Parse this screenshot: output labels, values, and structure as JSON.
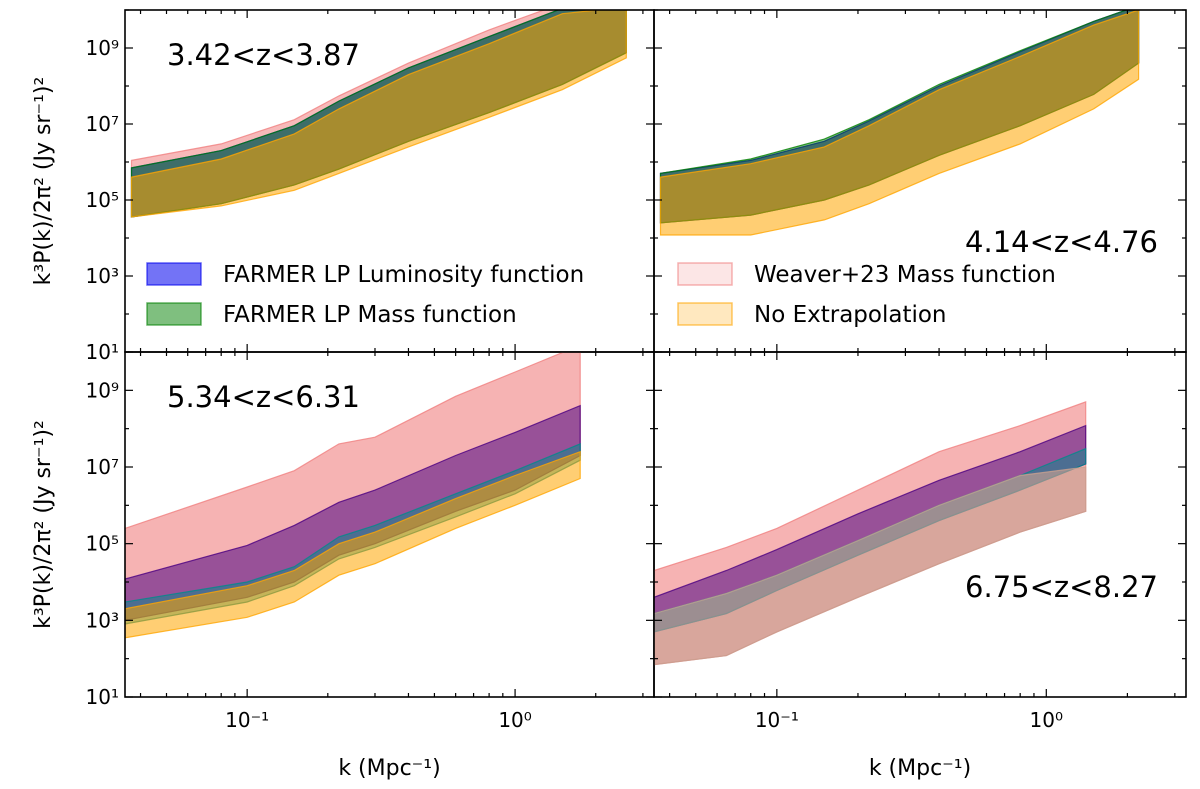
{
  "chart_data": {
    "type": "area",
    "title": "",
    "xlabel": "k (Mpc⁻¹)",
    "ylabel": "k³P(k)/2π² (Jy sr⁻¹)²",
    "xscale": "log",
    "yscale": "log",
    "ylim": [
      10,
      10000000000
    ],
    "x_tick_labels": [
      "10⁻¹",
      "10⁰"
    ],
    "y_tick_labels": [
      "10¹",
      "10³",
      "10⁵",
      "10⁷",
      "10⁹"
    ],
    "legend": [
      {
        "name": "FARMER LP Luminosity function",
        "color": "#0000ee"
      },
      {
        "name": "FARMER LP Mass function",
        "color": "#008000"
      },
      {
        "name": "Weaver+23 Mass function",
        "color": "#f08080"
      },
      {
        "name": "No Extrapolation",
        "color": "#ffa500"
      }
    ],
    "panels": [
      {
        "label": "3.42<z<3.87",
        "xlim": [
          0.035,
          3.3
        ],
        "label_pos": "top-left",
        "series": [
          {
            "name": "Weaver+23 Mass function",
            "color": "#f08080",
            "opacity": 0.55,
            "x": [
              0.037,
              0.08,
              0.15,
              0.22,
              0.4,
              0.8,
              1.5,
              2.6
            ],
            "upper": [
              1100000,
              3000000,
              13000000,
              55000000,
              400000000,
              3000000000,
              15000000000,
              20000000000
            ],
            "lower": [
              36000,
              80000,
              250000,
              650000,
              3500000,
              20000000,
              110000000,
              750000000
            ]
          },
          {
            "name": "FARMER LP Luminosity function",
            "color": "#0000ee",
            "opacity": 0.5,
            "x": [
              0.037,
              0.08,
              0.15,
              0.22,
              0.4,
              0.8,
              1.5,
              2.6
            ],
            "upper": [
              700000,
              2000000,
              9000000,
              40000000,
              300000000,
              2000000000,
              11000000000,
              15000000000
            ],
            "lower": [
              36000,
              80000,
              250000,
              650000,
              3500000,
              20000000,
              110000000,
              750000000
            ]
          },
          {
            "name": "FARMER LP Mass function",
            "color": "#008000",
            "opacity": 0.5,
            "x": [
              0.037,
              0.08,
              0.15,
              0.22,
              0.4,
              0.8,
              1.5,
              2.6
            ],
            "upper": [
              700000,
              2000000,
              9000000,
              40000000,
              300000000,
              2000000000,
              11000000000,
              15000000000
            ],
            "lower": [
              36000,
              80000,
              250000,
              650000,
              3500000,
              20000000,
              110000000,
              750000000
            ]
          },
          {
            "name": "No Extrapolation",
            "color": "#ffa500",
            "opacity": 0.55,
            "x": [
              0.037,
              0.08,
              0.15,
              0.22,
              0.4,
              0.8,
              1.5,
              2.6
            ],
            "upper": [
              400000,
              1200000,
              5500000,
              25000000,
              200000000,
              1300000000,
              8000000000,
              12000000000
            ],
            "lower": [
              36000,
              70000,
              180000,
              500000,
              2500000,
              15000000,
              80000000,
              550000000
            ]
          }
        ]
      },
      {
        "label": "4.14<z<4.76",
        "xlim": [
          0.035,
          3.3
        ],
        "label_pos": "bottom-right",
        "series": [
          {
            "name": "Weaver+23 Mass function",
            "color": "#f08080",
            "opacity": 0.55,
            "x": [
              0.037,
              0.08,
              0.15,
              0.22,
              0.4,
              0.8,
              1.5,
              2.2
            ],
            "upper": [
              500000,
              1100000,
              3500000,
              12000000,
              100000000,
              800000000,
              5000000000,
              13000000000
            ],
            "lower": [
              25000,
              40000,
              100000,
              250000,
              1500000,
              9000000,
              60000000,
              400000000
            ]
          },
          {
            "name": "FARMER LP Luminosity function",
            "color": "#0000ee",
            "opacity": 0.5,
            "x": [
              0.037,
              0.08,
              0.15,
              0.22,
              0.4,
              0.8,
              1.5,
              2.2
            ],
            "upper": [
              500000,
              1100000,
              3500000,
              12000000,
              100000000,
              800000000,
              5000000000,
              13000000000
            ],
            "lower": [
              25000,
              40000,
              100000,
              250000,
              1500000,
              9000000,
              60000000,
              400000000
            ]
          },
          {
            "name": "FARMER LP Mass function",
            "color": "#008000",
            "opacity": 0.5,
            "x": [
              0.037,
              0.08,
              0.15,
              0.22,
              0.4,
              0.8,
              1.5,
              2.2
            ],
            "upper": [
              500000,
              1200000,
              4000000,
              13000000,
              110000000,
              850000000,
              5000000000,
              13000000000
            ],
            "lower": [
              25000,
              40000,
              100000,
              250000,
              1500000,
              9000000,
              60000000,
              400000000
            ]
          },
          {
            "name": "No Extrapolation",
            "color": "#ffa500",
            "opacity": 0.55,
            "x": [
              0.037,
              0.08,
              0.15,
              0.22,
              0.4,
              0.8,
              1.5,
              2.2
            ],
            "upper": [
              400000,
              900000,
              2500000,
              9000000,
              80000000,
              600000000,
              4000000000,
              10000000000
            ],
            "lower": [
              12000,
              12000,
              30000,
              80000,
              500000,
              3000000,
              25000000,
              150000000
            ]
          }
        ]
      },
      {
        "label": "5.34<z<6.31",
        "xlim": [
          0.035,
          3.3
        ],
        "label_pos": "top-left",
        "series": [
          {
            "name": "Weaver+23 Mass function",
            "color": "#f08080",
            "opacity": 0.6,
            "x": [
              0.035,
              0.1,
              0.15,
              0.22,
              0.3,
              0.6,
              1.0,
              1.75
            ],
            "upper": [
              250000,
              3000000,
              8000000,
              40000000,
              60000000,
              700000000,
              3000000000,
              15000000000
            ],
            "lower": [
              1000,
              4000,
              10000,
              50000,
              100000,
              700000,
              2500000,
              20000000
            ]
          },
          {
            "name": "FARMER LP Luminosity function",
            "color": "#4b0082",
            "opacity": 0.55,
            "x": [
              0.035,
              0.1,
              0.15,
              0.22,
              0.3,
              0.6,
              1.0,
              1.75
            ],
            "upper": [
              12000,
              90000,
              300000,
              1200000,
              2500000,
              20000000,
              80000000,
              400000000
            ],
            "lower": [
              1000,
              4000,
              10000,
              50000,
              100000,
              700000,
              2500000,
              20000000
            ]
          },
          {
            "name": "FARMER LP Mass function",
            "color": "#008b8b",
            "opacity": 0.5,
            "x": [
              0.035,
              0.1,
              0.15,
              0.22,
              0.3,
              0.6,
              1.0,
              1.75
            ],
            "upper": [
              3000,
              10000,
              25000,
              150000,
              300000,
              2000000,
              8000000,
              40000000
            ],
            "lower": [
              800,
              3000,
              8000,
              40000,
              80000,
              500000,
              2000000,
              15000000
            ]
          },
          {
            "name": "No Extrapolation",
            "color": "#ffa500",
            "opacity": 0.55,
            "x": [
              0.035,
              0.1,
              0.15,
              0.22,
              0.3,
              0.6,
              1.0,
              1.75
            ],
            "upper": [
              2000,
              8000,
              20000,
              100000,
              200000,
              1500000,
              6000000,
              25000000
            ],
            "lower": [
              350,
              1200,
              3000,
              15000,
              30000,
              250000,
              1000000,
              5000000
            ]
          }
        ]
      },
      {
        "label": "6.75<z<8.27",
        "xlim": [
          0.035,
          3.3
        ],
        "label_pos": "bottom-right",
        "series": [
          {
            "name": "Weaver+23 Mass function",
            "color": "#f08080",
            "opacity": 0.6,
            "x": [
              0.035,
              0.065,
              0.1,
              0.2,
              0.4,
              0.8,
              1.4
            ],
            "upper": [
              20000,
              80000,
              250000,
              2500000,
              25000000,
              120000000,
              500000000
            ],
            "lower": [
              70,
              120,
              500,
              4000,
              30000,
              200000,
              700000
            ]
          },
          {
            "name": "FARMER LP Luminosity function",
            "color": "#4b0082",
            "opacity": 0.55,
            "x": [
              0.035,
              0.065,
              0.1,
              0.2,
              0.4,
              0.8,
              1.4
            ],
            "upper": [
              4000,
              20000,
              70000,
              600000,
              4500000,
              25000000,
              120000000
            ],
            "lower": [
              500,
              1500,
              6000,
              50000,
              400000,
              2500000,
              12000000
            ]
          },
          {
            "name": "FARMER LP Mass function",
            "color": "#008b8b",
            "opacity": 0.5,
            "x": [
              0.035,
              0.065,
              0.1,
              0.2,
              0.4,
              0.8,
              1.4
            ],
            "upper": [
              1500,
              5000,
              15000,
              120000,
              1000000,
              6000000,
              30000000
            ],
            "lower": [
              500,
              1500,
              6000,
              50000,
              400000,
              2500000,
              12000000
            ]
          },
          {
            "name": "No Extrapolation",
            "color": "#c8a090",
            "opacity": 0.65,
            "x": [
              0.035,
              0.065,
              0.1,
              0.2,
              0.4,
              0.8,
              1.4
            ],
            "upper": [
              1500,
              5000,
              15000,
              120000,
              1000000,
              6000000,
              10000000
            ],
            "lower": [
              70,
              120,
              500,
              4000,
              30000,
              200000,
              700000
            ]
          }
        ]
      }
    ]
  }
}
